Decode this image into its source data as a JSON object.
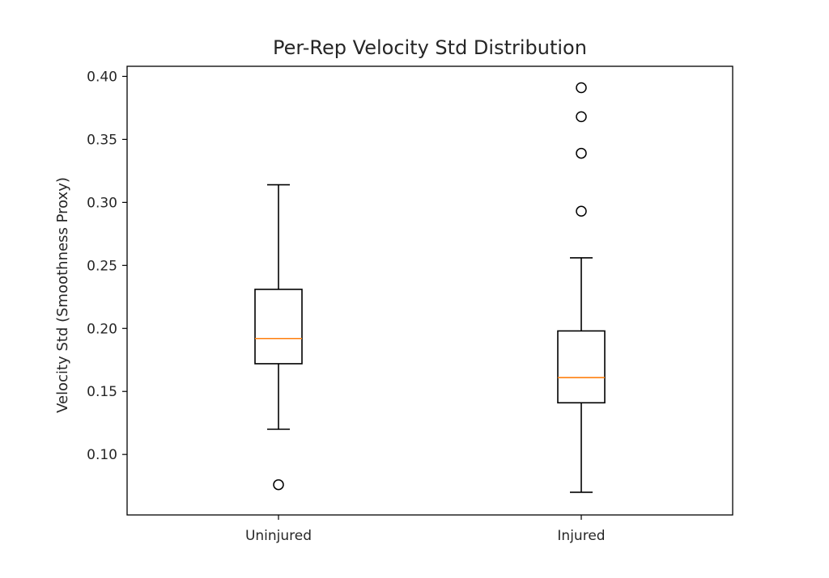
{
  "chart_data": {
    "type": "boxplot",
    "title": "Per-Rep Velocity Std Distribution",
    "xlabel": "",
    "ylabel": "Velocity Std (Smoothness Proxy)",
    "categories": [
      "Uninjured",
      "Injured"
    ],
    "ylim": [
      0.052,
      0.408
    ],
    "yticks": [
      0.1,
      0.15,
      0.2,
      0.25,
      0.3,
      0.35,
      0.4
    ],
    "ytick_labels": [
      "0.10",
      "0.15",
      "0.20",
      "0.25",
      "0.30",
      "0.35",
      "0.40"
    ],
    "grid": false,
    "boxes": [
      {
        "whisker_low": 0.12,
        "q1": 0.172,
        "median": 0.192,
        "q3": 0.231,
        "whisker_high": 0.314,
        "outliers": [
          0.076
        ]
      },
      {
        "whisker_low": 0.07,
        "q1": 0.141,
        "median": 0.161,
        "q3": 0.198,
        "whisker_high": 0.256,
        "outliers": [
          0.293,
          0.339,
          0.368,
          0.391
        ]
      }
    ],
    "colors": {
      "box": "#000000",
      "median": "#ff7f0e",
      "text": "#262626"
    }
  }
}
